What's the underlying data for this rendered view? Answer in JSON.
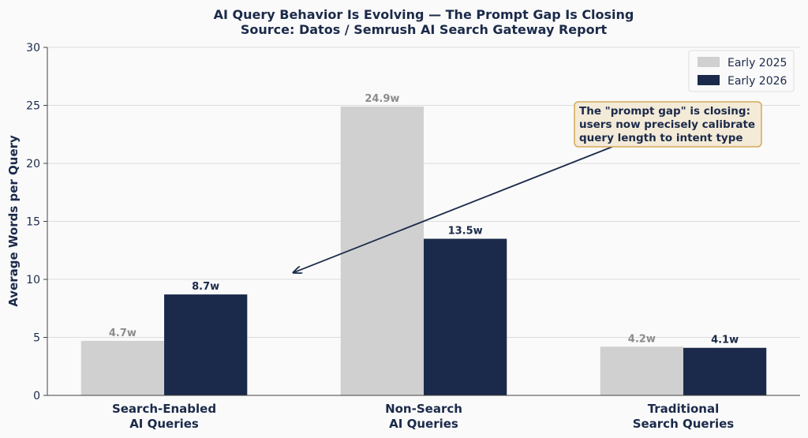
{
  "chart_data": {
    "type": "bar",
    "title": "AI Query Behavior Is Evolving — The Prompt Gap Is Closing",
    "subtitle": "Source: Datos / Semrush AI Search Gateway Report",
    "xlabel": "",
    "ylabel": "Average Words per Query",
    "ylim": [
      0,
      30
    ],
    "yticks": [
      0,
      5,
      10,
      15,
      20,
      25,
      30
    ],
    "categories": [
      [
        "Search-Enabled",
        "AI Queries"
      ],
      [
        "Non-Search",
        "AI Queries"
      ],
      [
        "Traditional",
        "Search Queries"
      ]
    ],
    "series": [
      {
        "name": "Early 2025",
        "color": "#d0d0d0",
        "label_color": "#8c8c8c",
        "values": [
          4.7,
          24.9,
          4.2
        ],
        "labels": [
          "4.7w",
          "24.9w",
          "4.2w"
        ]
      },
      {
        "name": "Early 2026",
        "color": "#1b2a4a",
        "label_color": "#1b2a4a",
        "values": [
          8.7,
          13.5,
          4.1
        ],
        "labels": [
          "8.7w",
          "13.5w",
          "4.1w"
        ]
      }
    ],
    "legend_position": "top-right",
    "grid": true,
    "annotation": {
      "lines": [
        "The \"prompt gap\" is closing:",
        "users now precisely calibrate",
        "query length to intent type"
      ],
      "arrow_target": {
        "category_index": 0.5,
        "value": 10.6
      }
    }
  }
}
